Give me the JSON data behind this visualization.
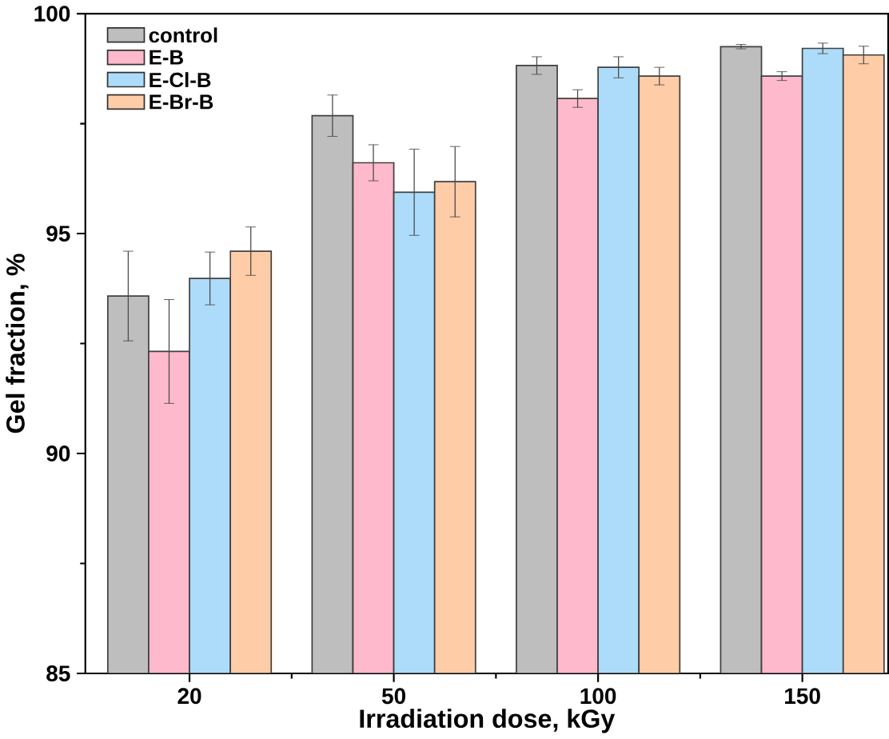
{
  "chart_data": {
    "type": "bar",
    "xlabel": "Irradiation dose, kGy",
    "ylabel": "Gel fraction, %",
    "categories": [
      "20",
      "50",
      "100",
      "150"
    ],
    "series": [
      {
        "name": "control",
        "color": "#bebebe",
        "values": [
          93.58,
          97.68,
          98.82,
          99.25
        ],
        "errors": [
          1.02,
          0.47,
          0.2,
          0.05
        ]
      },
      {
        "name": "E-B",
        "color": "#ffb9cc",
        "values": [
          92.32,
          96.61,
          98.07,
          98.58
        ],
        "errors": [
          1.18,
          0.41,
          0.2,
          0.1
        ]
      },
      {
        "name": "E-Cl-B",
        "color": "#addcfa",
        "values": [
          93.98,
          95.94,
          98.78,
          99.21
        ],
        "errors": [
          0.6,
          0.98,
          0.24,
          0.12
        ]
      },
      {
        "name": "E-Br-B",
        "color": "#ffcca8",
        "values": [
          94.6,
          96.18,
          98.58,
          99.06
        ],
        "errors": [
          0.55,
          0.8,
          0.2,
          0.2
        ]
      }
    ],
    "ylim": [
      85,
      100
    ],
    "yticks": [
      85,
      90,
      95,
      100
    ],
    "legend": "top left",
    "grid": false
  }
}
